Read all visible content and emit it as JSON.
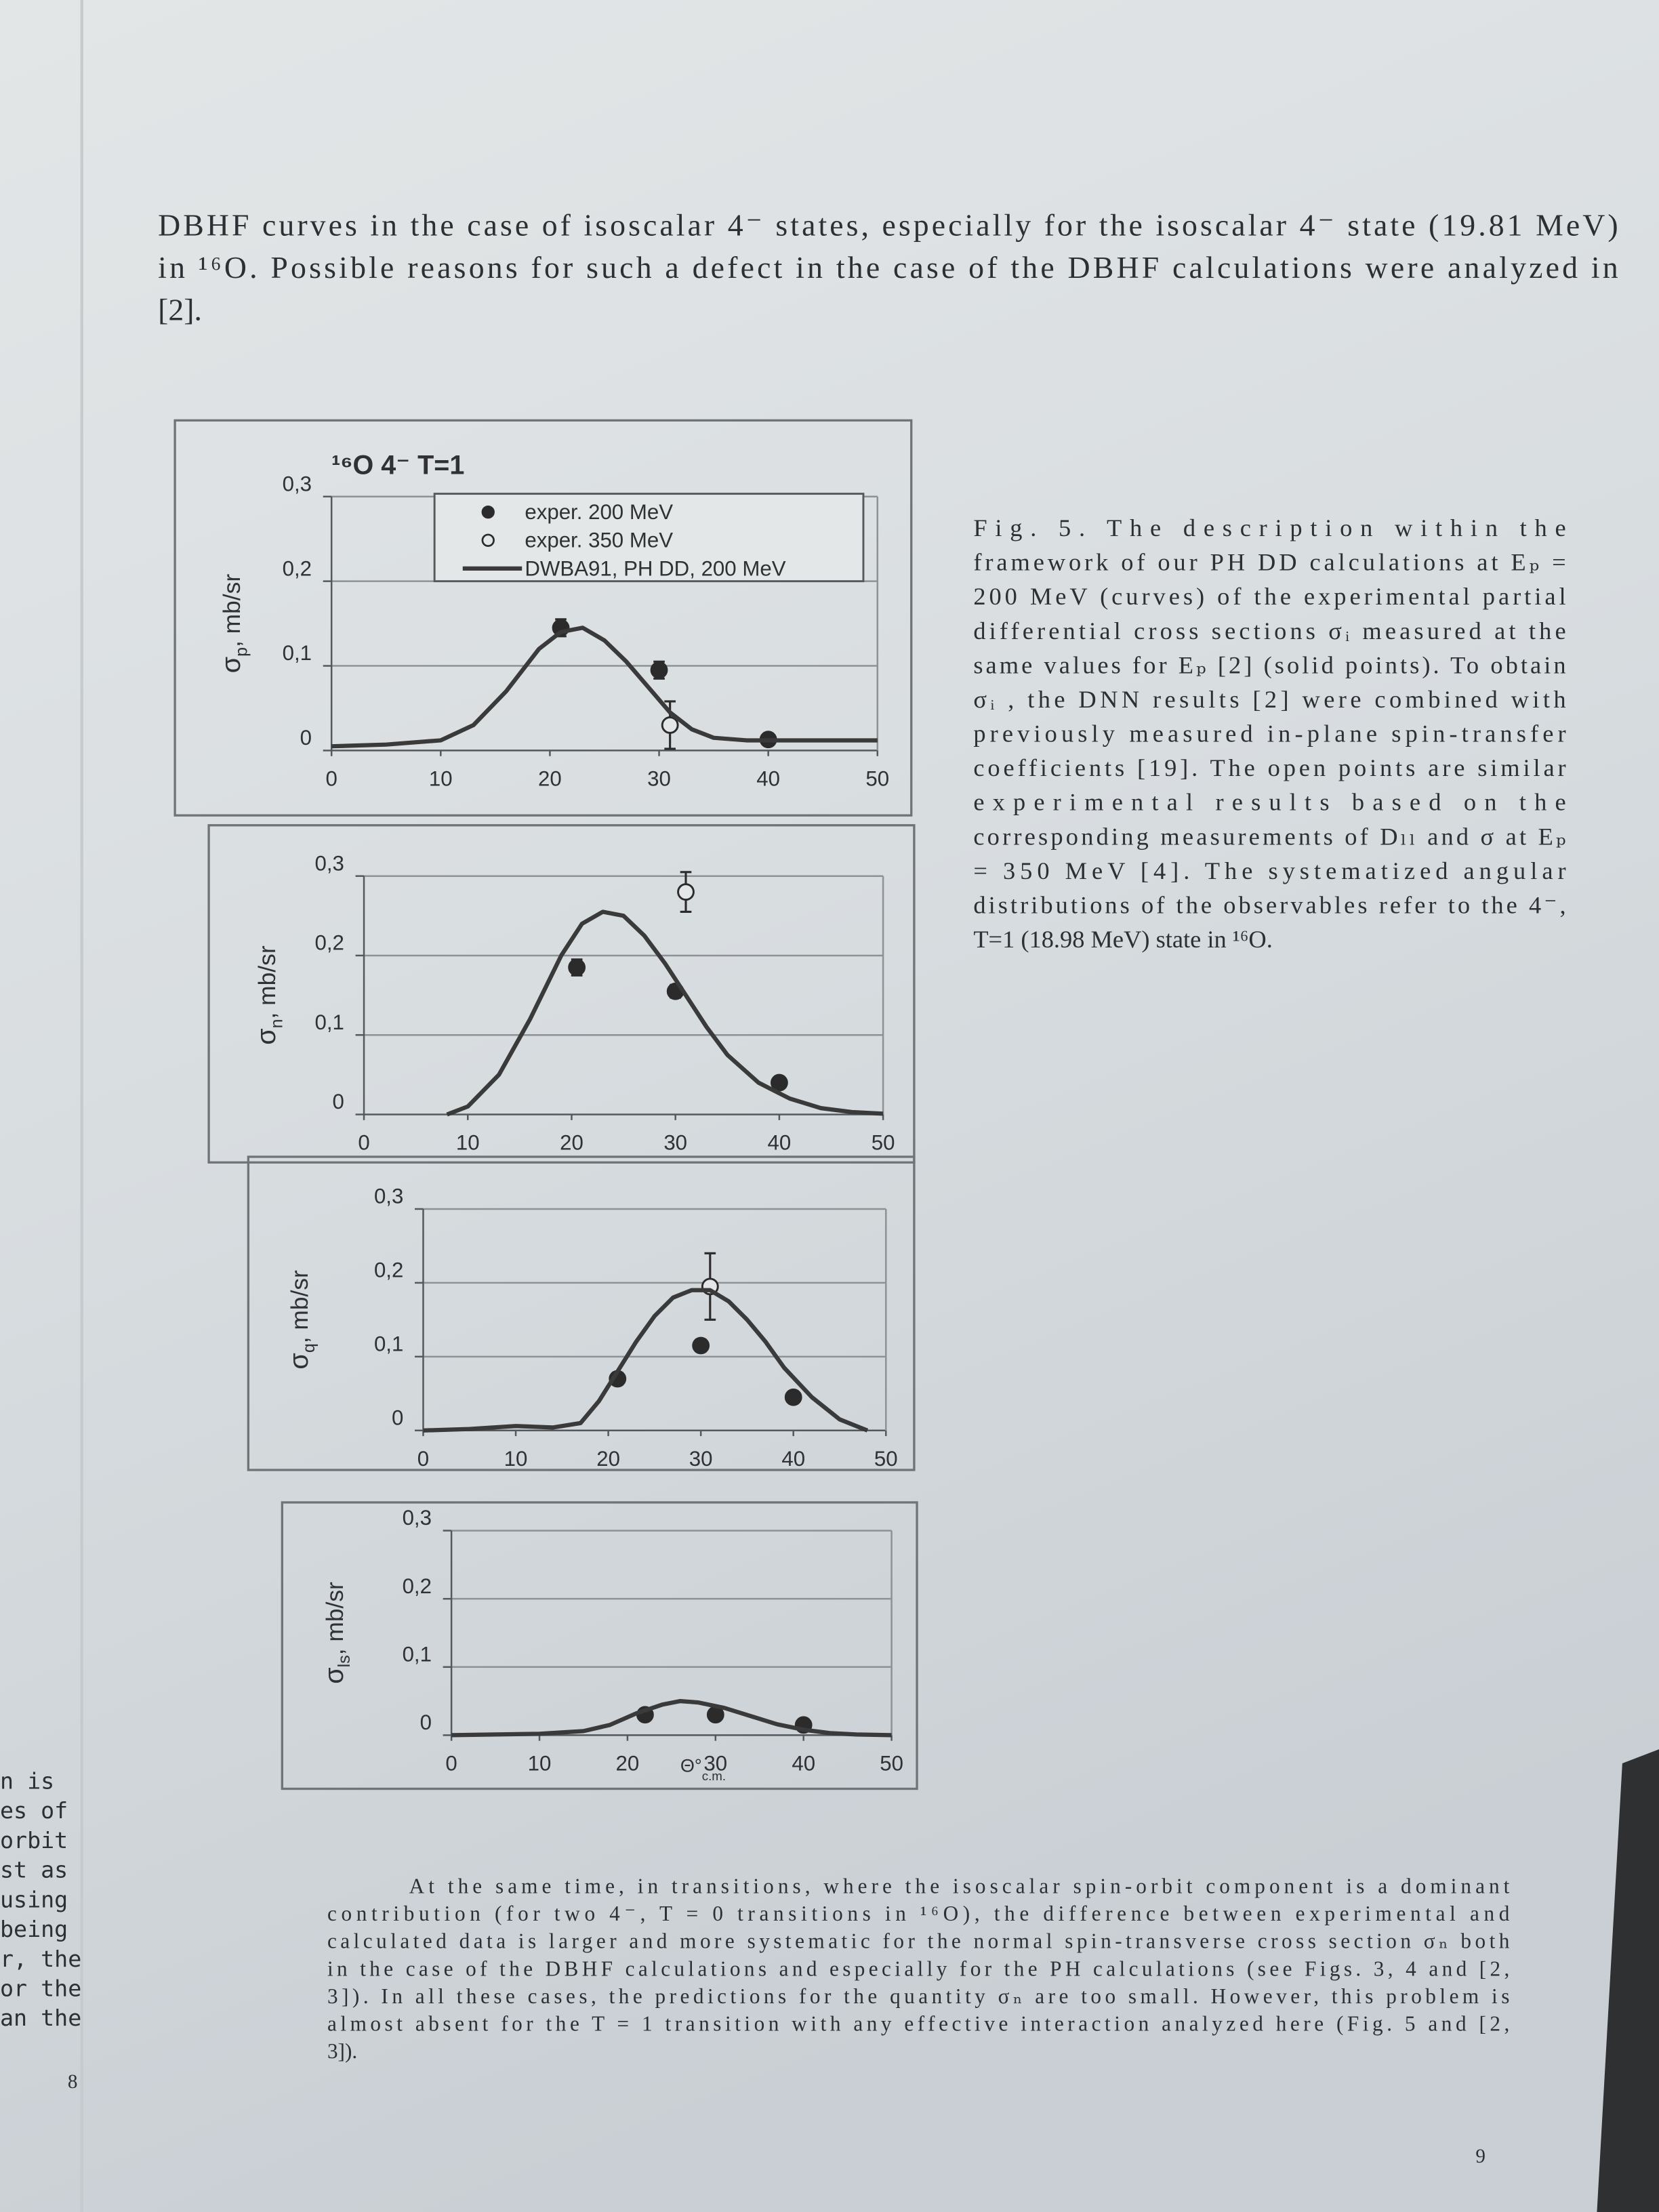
{
  "top_paragraph": {
    "lines": [
      "DBHF curves in the case of isoscalar 4⁻ states, especially for the isoscalar 4⁻ state (19.81 MeV)",
      "in ¹⁶O. Possible reasons for such a defect in the case of the DBHF calculations were analyzed in",
      "[2]."
    ]
  },
  "chart_data": [
    {
      "type": "line",
      "title": "¹⁶O 4⁻ T=1",
      "ylabel": {
        "text": "σ",
        "sub": "p",
        "rest": ", mb/sr"
      },
      "xlim": [
        0,
        50
      ],
      "ylim": [
        0,
        0.3
      ],
      "xticks": [
        0,
        10,
        20,
        30,
        40,
        50
      ],
      "yticks": [
        0,
        {
          "value": 0.1,
          "label": "0,1"
        },
        {
          "value": 0.2,
          "label": "0,2"
        },
        {
          "value": 0.3,
          "label": "0,3"
        }
      ],
      "grid": true,
      "legend": "upper right",
      "series": [
        {
          "name": "exper. 200 MeV",
          "mode": "filled",
          "color": "#2b2b2b",
          "x": [
            21,
            30,
            40
          ],
          "values": [
            0.145,
            0.095,
            0.013
          ],
          "errors": [
            0.01,
            0.01,
            0.004
          ]
        },
        {
          "name": "exper. 350 MeV",
          "mode": "open",
          "color": "#2b2b2b",
          "x": [
            31
          ],
          "values": [
            0.03
          ],
          "errors": [
            0.028
          ]
        },
        {
          "name": "DWBA91, PH DD, 200 MeV",
          "mode": "line",
          "color": "#3a3a3a",
          "x": [
            0,
            5,
            10,
            13,
            16,
            19,
            21,
            23,
            25,
            27,
            29,
            31,
            33,
            35,
            38,
            42,
            46,
            50
          ],
          "values": [
            0.005,
            0.007,
            0.012,
            0.03,
            0.07,
            0.12,
            0.14,
            0.145,
            0.13,
            0.105,
            0.075,
            0.045,
            0.025,
            0.015,
            0.012,
            0.012,
            0.012,
            0.012
          ]
        }
      ]
    },
    {
      "type": "line",
      "ylabel": {
        "text": "σ",
        "sub": "n",
        "rest": ", mb/sr"
      },
      "xlim": [
        0,
        50
      ],
      "ylim": [
        0,
        0.3
      ],
      "xticks": [
        0,
        10,
        20,
        30,
        40,
        50
      ],
      "yticks": [
        0,
        {
          "value": 0.1,
          "label": "0,1"
        },
        {
          "value": 0.2,
          "label": "0,2"
        },
        {
          "value": 0.3,
          "label": "0,3"
        }
      ],
      "grid": true,
      "series": [
        {
          "mode": "filled",
          "color": "#2b2b2b",
          "x": [
            20.5,
            30,
            40
          ],
          "values": [
            0.185,
            0.155,
            0.04
          ],
          "errors": [
            0.01,
            0.008,
            0.003
          ]
        },
        {
          "mode": "open",
          "color": "#2b2b2b",
          "x": [
            31
          ],
          "values": [
            0.28
          ],
          "errors": [
            0.025
          ]
        },
        {
          "mode": "line",
          "color": "#3a3a3a",
          "x": [
            8,
            10,
            13,
            16,
            19,
            21,
            23,
            25,
            27,
            29,
            31,
            33,
            35,
            38,
            41,
            44,
            47,
            50
          ],
          "values": [
            0,
            0.01,
            0.05,
            0.12,
            0.2,
            0.24,
            0.255,
            0.25,
            0.225,
            0.19,
            0.15,
            0.11,
            0.075,
            0.04,
            0.02,
            0.008,
            0.003,
            0.001
          ]
        }
      ]
    },
    {
      "type": "line",
      "ylabel": {
        "text": "σ",
        "sub": "q",
        "rest": ", mb/sr"
      },
      "xlim": [
        0,
        50
      ],
      "ylim": [
        0,
        0.3
      ],
      "xticks": [
        0,
        10,
        20,
        30,
        40,
        50
      ],
      "yticks": [
        0,
        {
          "value": 0.1,
          "label": "0,1"
        },
        {
          "value": 0.2,
          "label": "0,2"
        },
        {
          "value": 0.3,
          "label": "0,3"
        }
      ],
      "grid": true,
      "series": [
        {
          "mode": "filled",
          "color": "#2b2b2b",
          "x": [
            21,
            30,
            40
          ],
          "values": [
            0.07,
            0.115,
            0.045
          ],
          "errors": [
            0.008,
            0.008,
            0.003
          ]
        },
        {
          "mode": "open",
          "color": "#2b2b2b",
          "x": [
            31
          ],
          "values": [
            0.195
          ],
          "errors": [
            0.045
          ]
        },
        {
          "mode": "line",
          "color": "#3a3a3a",
          "x": [
            0,
            5,
            10,
            14,
            17,
            19,
            21,
            23,
            25,
            27,
            29,
            31,
            33,
            35,
            37,
            39,
            42,
            45,
            48
          ],
          "values": [
            0,
            0.002,
            0.006,
            0.004,
            0.01,
            0.04,
            0.08,
            0.12,
            0.155,
            0.18,
            0.19,
            0.19,
            0.175,
            0.15,
            0.12,
            0.085,
            0.045,
            0.015,
            0
          ]
        }
      ]
    },
    {
      "type": "line",
      "ylabel": {
        "text": "σ",
        "sub": "ls",
        "rest": ", mb/sr"
      },
      "xlabel": {
        "text": "Θ°",
        "sub": "c.m."
      },
      "xlim": [
        0,
        50
      ],
      "ylim": [
        0,
        0.3
      ],
      "xticks": [
        0,
        10,
        20,
        30,
        40,
        50
      ],
      "yticks": [
        0,
        {
          "value": 0.1,
          "label": "0,1"
        },
        {
          "value": 0.2,
          "label": "0,2"
        },
        {
          "value": 0.3,
          "label": "0,3"
        }
      ],
      "grid": true,
      "series": [
        {
          "mode": "filled",
          "color": "#2b2b2b",
          "x": [
            22,
            30,
            40
          ],
          "values": [
            0.03,
            0.03,
            0.015
          ],
          "errors": [
            0.005,
            0.003,
            0.002
          ]
        },
        {
          "mode": "line",
          "color": "#3a3a3a",
          "x": [
            0,
            10,
            15,
            18,
            21,
            24,
            26,
            28,
            31,
            34,
            37,
            40,
            43,
            46,
            50
          ],
          "values": [
            0,
            0.002,
            0.006,
            0.015,
            0.032,
            0.045,
            0.05,
            0.048,
            0.04,
            0.028,
            0.016,
            0.008,
            0.003,
            0.001,
            0
          ]
        }
      ]
    }
  ],
  "caption": {
    "lines": [
      "Fig. 5. The description within the",
      "framework of our PH DD calculations at Eₚ =",
      "200 MeV (curves) of the experimental partial",
      "differential cross sections σᵢ measured at the",
      "same values for Eₚ [2] (solid points). To obtain",
      "σᵢ , the DNN results [2] were combined with",
      "previously measured in-plane spin-transfer",
      "coefficients [19]. The open points are similar",
      "experimental results based on the",
      "corresponding measurements of Dₗₗ and σ at Eₚ",
      "= 350 MeV [4]. The systematized angular",
      "distributions of the observables refer to the 4⁻,",
      "T=1 (18.98 MeV) state in ¹⁶O."
    ]
  },
  "bottom_paragraph": {
    "lines": [
      "At the same time, in transitions, where the isoscalar spin-orbit component is a dominant",
      "contribution (for two 4⁻, T = 0 transitions in ¹⁶O), the difference between experimental and",
      "calculated data is larger and more systematic for the normal spin-transverse cross section σₙ both",
      "in the case of the DBHF calculations and especially for the PH calculations (see Figs. 3, 4 and [2,",
      "3]). In all these cases, the predictions for the quantity σₙ are too small. However, this problem is",
      "almost absent for the T = 1 transition with any effective interaction analyzed here (Fig. 5 and [2,",
      "3])."
    ]
  },
  "left_page": {
    "lines": [
      "n is",
      "es of",
      "orbit",
      "st as",
      "using",
      "being",
      "r, the",
      "or the",
      "an the"
    ],
    "page_number": "8"
  },
  "page_number": "9"
}
